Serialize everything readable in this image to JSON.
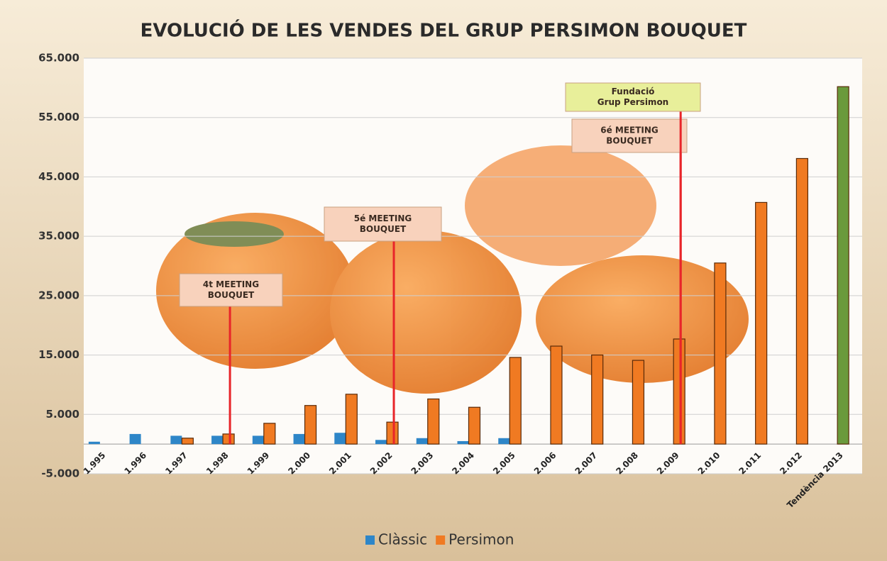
{
  "chart_data": {
    "type": "bar",
    "title": "EVOLUCIÓ DE LES VENDES DEL GRUP PERSIMON BOUQUET",
    "categories": [
      "1.995",
      "1.996",
      "1.997",
      "1.998",
      "1.999",
      "2.000",
      "2.001",
      "2.002",
      "2.003",
      "2.004",
      "2.005",
      "2.006",
      "2.007",
      "2.008",
      "2.009",
      "2.010",
      "2.011",
      "2.012",
      "Tendència 2013"
    ],
    "series": [
      {
        "name": "Clàssic",
        "color": "#2e86c8",
        "values": [
          400,
          1700,
          1400,
          1400,
          1400,
          1700,
          1900,
          700,
          1000,
          500,
          1000,
          null,
          null,
          null,
          null,
          null,
          null,
          null,
          null
        ]
      },
      {
        "name": "Persimon",
        "color": "#f07a22",
        "colors": [
          "#f07a22",
          "#f07a22",
          "#f07a22",
          "#f07a22",
          "#f07a22",
          "#f07a22",
          "#f07a22",
          "#f07a22",
          "#f07a22",
          "#f07a22",
          "#f07a22",
          "#f07a22",
          "#f07a22",
          "#f07a22",
          "#f07a22",
          "#f07a22",
          "#f07a22",
          "#f07a22",
          "#6a9a3c"
        ],
        "values": [
          null,
          null,
          1000,
          1700,
          3500,
          6500,
          8400,
          3700,
          7600,
          6200,
          14600,
          16500,
          15000,
          14100,
          17700,
          30500,
          40700,
          48100,
          60200
        ]
      }
    ],
    "ylim": [
      -5000,
      65000
    ],
    "yticks": [
      {
        "value": -5000,
        "label": "-5.000"
      },
      {
        "value": 5000,
        "label": "5.000"
      },
      {
        "value": 15000,
        "label": "15.000"
      },
      {
        "value": 25000,
        "label": "25.000"
      },
      {
        "value": 35000,
        "label": "35.000"
      },
      {
        "value": 45000,
        "label": "45.000"
      },
      {
        "value": 55000,
        "label": "55.000"
      },
      {
        "value": 65000,
        "label": "65.000"
      }
    ],
    "grid": true,
    "legend": "bottom",
    "annotations": [
      {
        "category": "1.998",
        "lines": [
          "4t MEETING",
          "BOUQUET"
        ]
      },
      {
        "category": "2.002",
        "lines": [
          "5é MEETING",
          "BOUQUET"
        ]
      },
      {
        "category": "2.009",
        "lines": [
          "6é MEETING",
          "BOUQUET"
        ]
      },
      {
        "category": "2.009",
        "lines": [
          "Fundació",
          "Grup Persimon"
        ]
      }
    ]
  }
}
